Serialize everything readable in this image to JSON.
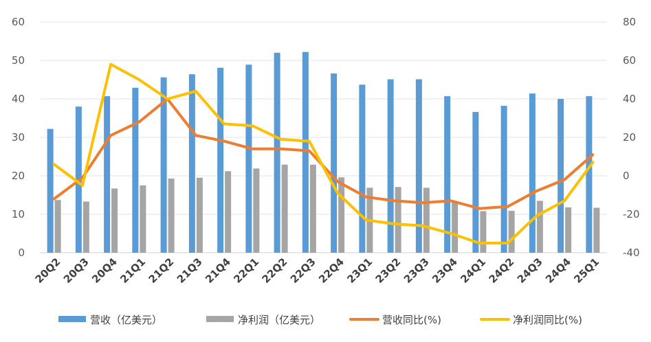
{
  "chart_data": {
    "type": "bar",
    "categories": [
      "20Q2",
      "20Q3",
      "20Q4",
      "21Q1",
      "21Q2",
      "21Q3",
      "21Q4",
      "22Q1",
      "22Q2",
      "22Q3",
      "22Q4",
      "23Q1",
      "23Q2",
      "23Q3",
      "23Q4",
      "24Q1",
      "24Q2",
      "24Q3",
      "24Q4",
      "25Q1"
    ],
    "series": [
      {
        "name": "营收（亿美元）",
        "type": "bar",
        "axis": "left",
        "color": "#5B9BD5",
        "values": [
          32.2,
          38.0,
          40.7,
          42.9,
          45.6,
          46.4,
          48.1,
          48.9,
          52.0,
          52.2,
          46.6,
          43.7,
          45.1,
          45.1,
          40.7,
          36.6,
          38.2,
          41.4,
          40.0,
          40.7
        ]
      },
      {
        "name": "净利润（亿美元）",
        "type": "bar",
        "axis": "left",
        "color": "#A5A5A5",
        "values": [
          13.7,
          13.3,
          16.7,
          17.5,
          19.3,
          19.5,
          21.2,
          21.9,
          22.9,
          22.9,
          19.6,
          16.9,
          17.1,
          16.9,
          13.4,
          10.8,
          10.9,
          13.5,
          11.8,
          11.7
        ]
      },
      {
        "name": "营收同比(%)",
        "type": "line",
        "axis": "right",
        "color": "#ED7D31",
        "values": [
          -12,
          -1,
          21,
          28,
          40,
          21,
          18,
          14,
          14,
          13,
          -3,
          -11,
          -13,
          -14,
          -13,
          -17,
          -16,
          -8,
          -2,
          11
        ]
      },
      {
        "name": "净利润同比(%)",
        "type": "line",
        "axis": "right",
        "color": "#FFC000",
        "values": [
          6,
          -5,
          58,
          50,
          40,
          44,
          27,
          26,
          19,
          18,
          -9,
          -23,
          -25,
          -26,
          -30,
          -35,
          -35,
          -21,
          -13,
          7
        ]
      }
    ],
    "y_left": {
      "min": 0,
      "max": 60,
      "ticks": [
        "0",
        "10",
        "20",
        "30",
        "40",
        "50",
        "60"
      ]
    },
    "y_right": {
      "min": -40,
      "max": 80,
      "ticks": [
        "-40",
        "-20",
        "0",
        "20",
        "40",
        "60",
        "80"
      ]
    },
    "grid": true,
    "legend": "bottom",
    "title": "",
    "xlabel": "",
    "ylabel": ""
  }
}
